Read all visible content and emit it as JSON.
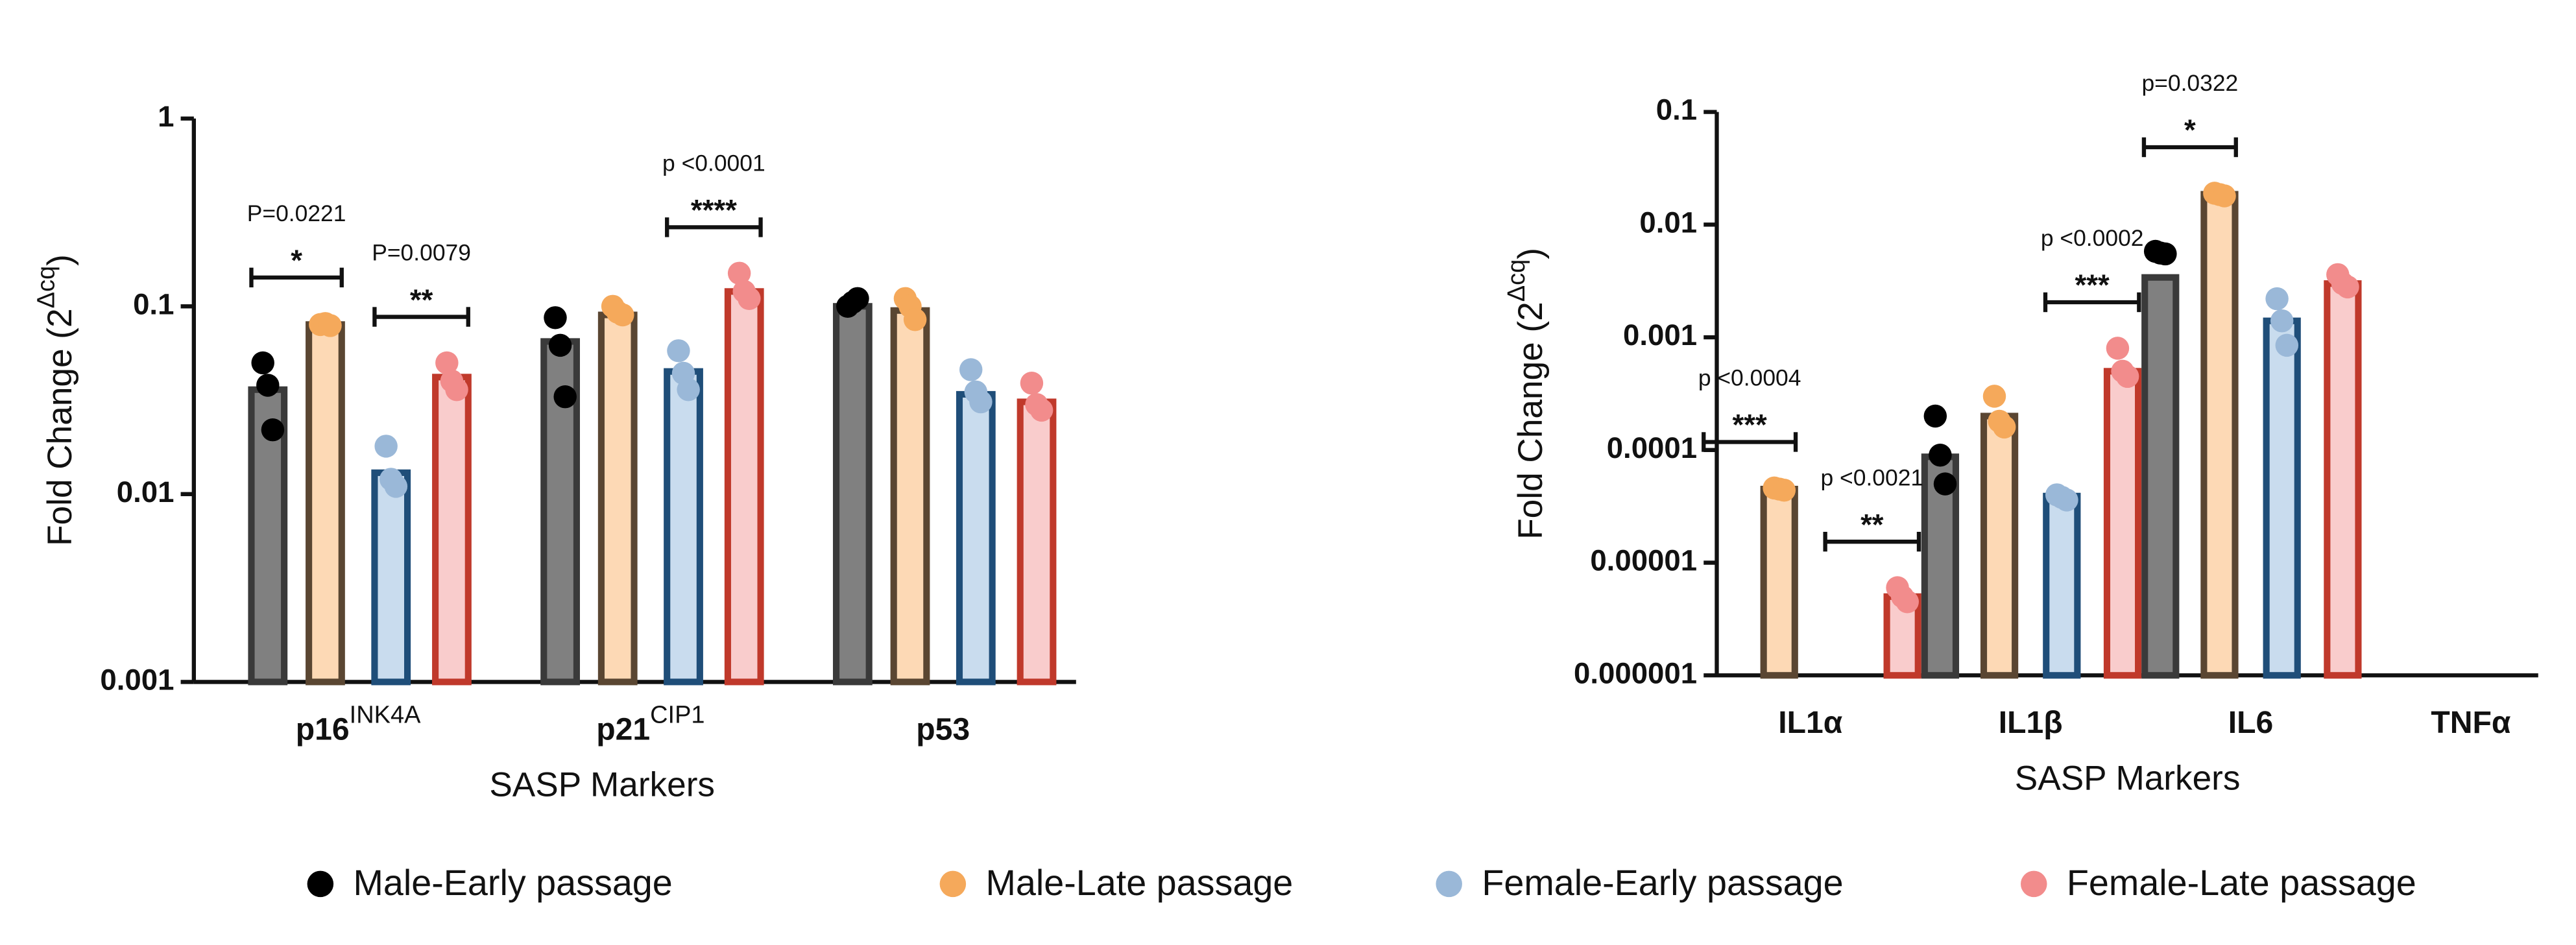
{
  "chart_data": [
    {
      "type": "bar",
      "log_scale": true,
      "xlabel": "SASP Markers",
      "ylabel": "Fold Change (2",
      "ylabel_sup": "Δcq",
      "ylabel_end": ")",
      "categories": [
        "p16",
        "p21",
        "p53"
      ],
      "category_superscripts": [
        "INK4A",
        "CIP1",
        null
      ],
      "ylim": [
        0.001,
        1
      ],
      "yticks": [
        0.001,
        0.01,
        0.1,
        1
      ],
      "series": [
        {
          "name": "Male-Early passage",
          "color": "#000000",
          "fill": "#808080",
          "edge": "#3a3a3a",
          "values": [
            0.036,
            0.065,
            0.1
          ],
          "points": [
            [
              0.05,
              0.038,
              0.022
            ],
            [
              0.087,
              0.062,
              0.033
            ],
            [
              0.1,
              0.105,
              0.11
            ]
          ]
        },
        {
          "name": "Male-Late passage",
          "color": "#f5a95b",
          "fill": "#fdd9b5",
          "edge": "#5a4632",
          "values": [
            0.08,
            0.09,
            0.095
          ],
          "points": [
            [
              0.08,
              0.081,
              0.079
            ],
            [
              0.1,
              0.093,
              0.09
            ],
            [
              0.11,
              0.1,
              0.085
            ]
          ]
        },
        {
          "name": "Female-Early passage",
          "color": "#9ab8d8",
          "fill": "#c9dcee",
          "edge": "#1f4e79",
          "values": [
            0.013,
            0.045,
            0.034
          ],
          "points": [
            [
              0.018,
              0.012,
              0.011
            ],
            [
              0.058,
              0.044,
              0.036
            ],
            [
              0.046,
              0.035,
              0.031
            ]
          ]
        },
        {
          "name": "Female-Late passage",
          "color": "#f28c8c",
          "fill": "#f9cccc",
          "edge": "#c0392b",
          "values": [
            0.042,
            0.12,
            0.031
          ],
          "points": [
            [
              0.05,
              0.04,
              0.036
            ],
            [
              0.15,
              0.12,
              0.11
            ],
            [
              0.039,
              0.03,
              0.028
            ]
          ]
        }
      ],
      "annotations": [
        {
          "p": "P=0.0221",
          "stars": "*",
          "category": 0,
          "series": [
            0,
            1
          ]
        },
        {
          "p": "P=0.0079",
          "stars": "**",
          "category": 0,
          "series": [
            2,
            3
          ]
        },
        {
          "p": "p <0.0001",
          "stars": "****",
          "category": 1,
          "series": [
            2,
            3
          ]
        }
      ]
    },
    {
      "type": "bar",
      "log_scale": true,
      "xlabel": "SASP Markers",
      "ylabel": "Fold Change (2",
      "ylabel_sup": "Δcq",
      "ylabel_end": ")",
      "categories": [
        "IL1α",
        "IL1β",
        "IL6",
        "TNFα"
      ],
      "ylim": [
        1e-06,
        0.1
      ],
      "yticks": [
        1e-06,
        1e-05,
        0.0001,
        0.001,
        0.01,
        0.1
      ],
      "series": [
        {
          "color": "#000000",
          "fill": "#808080",
          "edge": "#3a3a3a",
          "values": [
            null,
            8.7e-05,
            0.0034,
            null
          ],
          "points": [
            null,
            [
              0.0002,
              9e-05,
              5e-05
            ],
            [
              0.0058,
              0.0056,
              0.0055
            ],
            null
          ]
        },
        {
          "color": "#f5a95b",
          "fill": "#fdd9b5",
          "edge": "#5a4632",
          "values": [
            4.5e-05,
            0.0002,
            0.0186,
            null
          ],
          "points": [
            [
              4.6e-05,
              4.5e-05,
              4.4e-05
            ],
            [
              0.0003,
              0.00018,
              0.00016
            ],
            [
              0.019,
              0.0185,
              0.018
            ],
            null
          ]
        },
        {
          "color": "#9ab8d8",
          "fill": "#c9dcee",
          "edge": "#1f4e79",
          "values": [
            null,
            3.9e-05,
            0.0014,
            null
          ],
          "points": [
            null,
            [
              4e-05,
              3.8e-05,
              3.6e-05
            ],
            [
              0.0022,
              0.0014,
              0.00085
            ],
            null
          ]
        },
        {
          "color": "#f28c8c",
          "fill": "#f9cccc",
          "edge": "#c0392b",
          "values": [
            5e-06,
            0.0005,
            0.003,
            null
          ],
          "points": [
            [
              6e-06,
              5e-06,
              4.5e-06
            ],
            [
              0.0008,
              0.0005,
              0.00045
            ],
            [
              0.0036,
              0.003,
              0.0028
            ],
            null
          ]
        }
      ],
      "annotations": [
        {
          "p": "p <0.0004",
          "stars": "***",
          "category": 0,
          "series": [
            0,
            1
          ]
        },
        {
          "p": "p <0.0021",
          "stars": "**",
          "category": 0,
          "series": [
            2,
            3
          ]
        },
        {
          "p": "p <0.0002",
          "stars": "***",
          "category": 1,
          "series": [
            2,
            3
          ]
        },
        {
          "p": "p=0.0322",
          "stars": "*",
          "category": 2,
          "series": [
            0,
            1
          ]
        }
      ]
    }
  ],
  "legend": "bottom"
}
